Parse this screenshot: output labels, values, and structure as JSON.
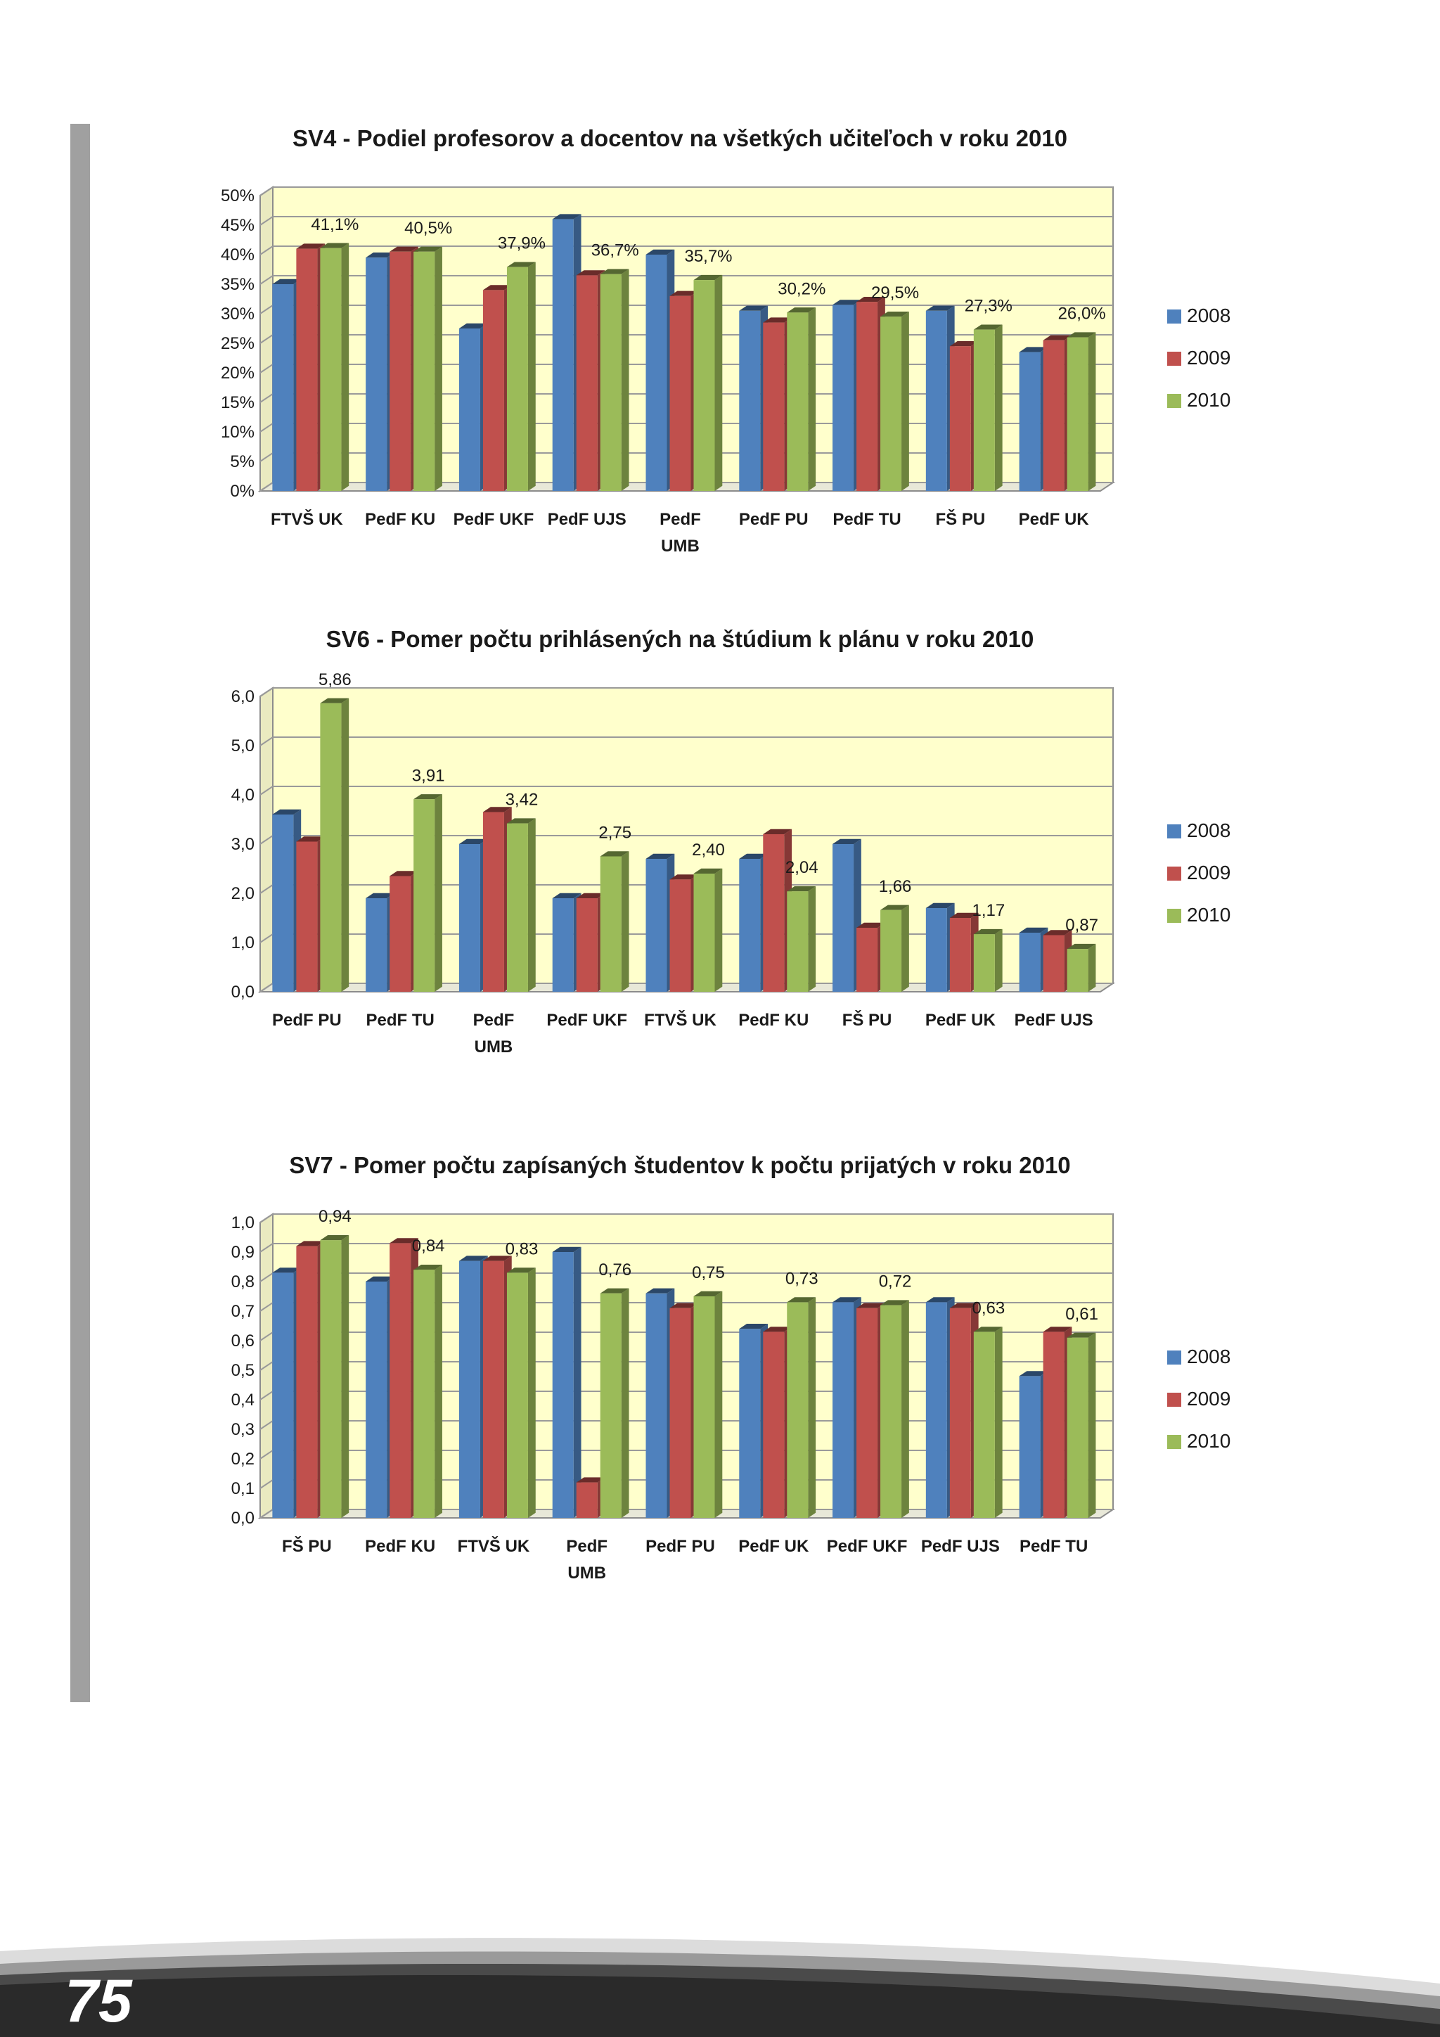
{
  "page": {
    "number": "75"
  },
  "colors": {
    "2008": "#4f81bd",
    "2009": "#c0504d",
    "2010": "#9bbb59",
    "plot_bg": "#ffffcc",
    "grid": "#9a9a9a",
    "side_bar": "#a0a0a0"
  },
  "chart_data": [
    {
      "id": "sv4",
      "type": "bar",
      "title": "SV4 - Podiel profesorov a docentov na všetkých učiteľoch v roku 2010",
      "categories": [
        [
          "FTVŠ UK"
        ],
        [
          "PedF KU"
        ],
        [
          "PedF UKF"
        ],
        [
          "PedF UJS"
        ],
        [
          "PedF",
          "UMB"
        ],
        [
          "PedF PU"
        ],
        [
          "PedF  TU"
        ],
        [
          "FŠ PU"
        ],
        [
          "PedF  UK"
        ]
      ],
      "series": [
        {
          "name": "2008",
          "values": [
            35.0,
            39.5,
            27.5,
            46.0,
            40.0,
            30.5,
            31.5,
            30.5,
            23.5
          ]
        },
        {
          "name": "2009",
          "values": [
            41.0,
            40.5,
            34.0,
            36.5,
            33.0,
            28.5,
            32.0,
            24.5,
            25.5
          ]
        },
        {
          "name": "2010",
          "values": [
            41.1,
            40.5,
            37.9,
            36.7,
            35.7,
            30.2,
            29.5,
            27.3,
            26.0
          ]
        }
      ],
      "data_labels": [
        "41,1%",
        "40,5%",
        "37,9%",
        "36,7%",
        "35,7%",
        "30,2%",
        "29,5%",
        "27,3%",
        "26,0%"
      ],
      "ylim": [
        0,
        50
      ],
      "yticks": [
        0,
        5,
        10,
        15,
        20,
        25,
        30,
        35,
        40,
        45,
        50
      ],
      "ytick_labels": [
        "0%",
        "5%",
        "10%",
        "15%",
        "20%",
        "25%",
        "30%",
        "35%",
        "40%",
        "45%",
        "50%"
      ],
      "xlabel": "",
      "ylabel": "",
      "grid": true,
      "legend": "right"
    },
    {
      "id": "sv6",
      "type": "bar",
      "title": "SV6 - Pomer počtu prihlásených na štúdium k plánu v roku 2010",
      "categories": [
        [
          "PedF PU"
        ],
        [
          "PedF  TU"
        ],
        [
          "PedF",
          "UMB"
        ],
        [
          "PedF UKF"
        ],
        [
          "FTVŠ UK"
        ],
        [
          "PedF KU"
        ],
        [
          "FŠ PU"
        ],
        [
          "PedF  UK"
        ],
        [
          "PedF UJS"
        ]
      ],
      "series": [
        {
          "name": "2008",
          "values": [
            3.6,
            1.9,
            3.0,
            1.9,
            2.7,
            2.7,
            3.0,
            1.7,
            1.2
          ]
        },
        {
          "name": "2009",
          "values": [
            3.05,
            2.35,
            3.65,
            1.9,
            2.28,
            3.2,
            1.3,
            1.5,
            1.15
          ]
        },
        {
          "name": "2010",
          "values": [
            5.86,
            3.91,
            3.42,
            2.75,
            2.4,
            2.04,
            1.66,
            1.17,
            0.87
          ]
        }
      ],
      "data_labels": [
        "5,86",
        "3,91",
        "3,42",
        "2,75",
        "2,40",
        "2,04",
        "1,66",
        "1,17",
        "0,87"
      ],
      "ylim": [
        0,
        6
      ],
      "yticks": [
        0,
        1,
        2,
        3,
        4,
        5,
        6
      ],
      "ytick_labels": [
        "0,0",
        "1,0",
        "2,0",
        "3,0",
        "4,0",
        "5,0",
        "6,0"
      ],
      "xlabel": "",
      "ylabel": "",
      "grid": true,
      "legend": "right"
    },
    {
      "id": "sv7",
      "type": "bar",
      "title": "SV7 - Pomer počtu zapísaných študentov k počtu prijatých v roku 2010",
      "categories": [
        [
          "FŠ PU"
        ],
        [
          "PedF KU"
        ],
        [
          "FTVŠ UK"
        ],
        [
          "PedF",
          "UMB"
        ],
        [
          "PedF PU"
        ],
        [
          "PedF  UK"
        ],
        [
          "PedF UKF"
        ],
        [
          "PedF UJS"
        ],
        [
          "PedF  TU"
        ]
      ],
      "series": [
        {
          "name": "2008",
          "values": [
            0.83,
            0.8,
            0.87,
            0.9,
            0.76,
            0.64,
            0.73,
            0.73,
            0.48
          ]
        },
        {
          "name": "2009",
          "values": [
            0.92,
            0.93,
            0.87,
            0.12,
            0.71,
            0.63,
            0.71,
            0.71,
            0.63
          ]
        },
        {
          "name": "2010",
          "values": [
            0.94,
            0.84,
            0.83,
            0.76,
            0.75,
            0.73,
            0.72,
            0.63,
            0.61
          ]
        }
      ],
      "data_labels": [
        "0,94",
        "0,84",
        "0,83",
        "0,76",
        "0,75",
        "0,73",
        "0,72",
        "0,63",
        "0,61"
      ],
      "ylim": [
        0,
        1
      ],
      "yticks": [
        0,
        0.1,
        0.2,
        0.3,
        0.4,
        0.5,
        0.6,
        0.7,
        0.8,
        0.9,
        1.0
      ],
      "ytick_labels": [
        "0,0",
        "0,1",
        "0,2",
        "0,3",
        "0,4",
        "0,5",
        "0,6",
        "0,7",
        "0,8",
        "0,9",
        "1,0"
      ],
      "xlabel": "",
      "ylabel": "",
      "grid": true,
      "legend": "right"
    }
  ]
}
